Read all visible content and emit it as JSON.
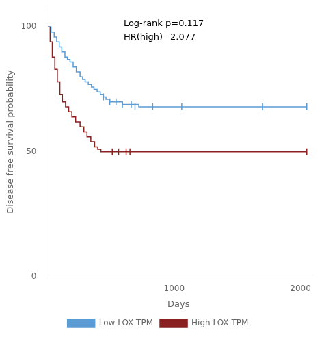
{
  "chart_data": {
    "type": "step",
    "xlabel": "Days",
    "ylabel": "Disease free survival probability",
    "xlim": [
      -30,
      2100
    ],
    "ylim": [
      0,
      108
    ],
    "xticks": [
      {
        "value": 0,
        "label": null
      },
      1000,
      2000
    ],
    "yticks": [
      0,
      50,
      100
    ],
    "grid": false,
    "legend": "bottom",
    "annotations": [
      {
        "text": "Log-rank p=0.117\nHR(high)=2.077",
        "x": 600,
        "y": 103
      }
    ],
    "series": [
      {
        "name": "Low LOX TPM",
        "color": "#5b9bd5",
        "x": [
          0,
          25,
          50,
          70,
          90,
          110,
          135,
          155,
          175,
          200,
          225,
          255,
          275,
          295,
          320,
          345,
          365,
          390,
          415,
          440,
          460,
          490,
          510,
          540,
          560,
          590,
          620,
          660,
          690,
          720,
          760,
          790,
          830,
          870,
          910,
          950,
          1000,
          1060,
          1700,
          2050
        ],
        "values": [
          100,
          98,
          96,
          94,
          92,
          90,
          88,
          87,
          86,
          84,
          82,
          80,
          79,
          78,
          77,
          76,
          75,
          74,
          73,
          72,
          71,
          70,
          70,
          70,
          70,
          69,
          69,
          69,
          69,
          68,
          68,
          68,
          68,
          68,
          68,
          68,
          68,
          68,
          68,
          68
        ],
        "censor_x": [
          440,
          490,
          540,
          590,
          660,
          690,
          830,
          1060,
          1700,
          2050
        ],
        "censor_values": [
          72,
          70,
          70,
          69,
          69,
          68,
          68,
          68,
          68,
          68
        ]
      },
      {
        "name": "High LOX TPM",
        "color": "#8b2020",
        "x": [
          0,
          18,
          35,
          55,
          75,
          95,
          115,
          140,
          165,
          190,
          220,
          255,
          285,
          310,
          340,
          370,
          395,
          420,
          455,
          510,
          560,
          600,
          620,
          650,
          2050
        ],
        "values": [
          100,
          94,
          88,
          83,
          78,
          73,
          70,
          68,
          66,
          64,
          62,
          60,
          58,
          56,
          54,
          52,
          51,
          50,
          50,
          50,
          50,
          50,
          50,
          50,
          50
        ],
        "censor_x": [
          510,
          560,
          620,
          650,
          2050
        ],
        "censor_values": [
          50,
          50,
          50,
          50,
          50
        ]
      }
    ]
  }
}
